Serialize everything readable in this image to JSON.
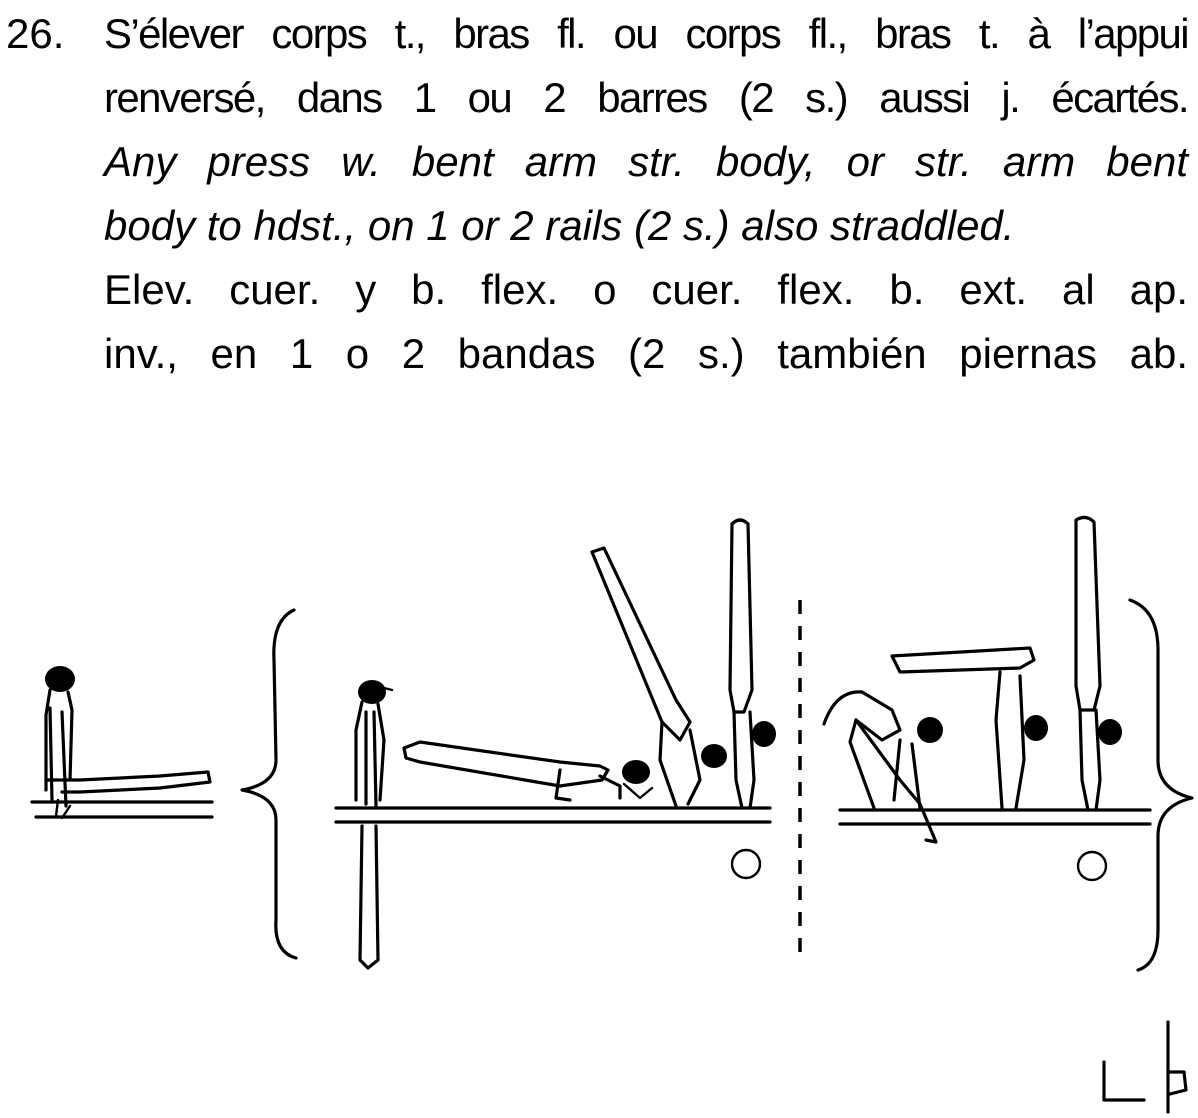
{
  "element": {
    "number": "26.",
    "french": {
      "line1": "S’élever corps t., bras fl. ou corps fl., bras t. à l’appui",
      "line2": "renversé, dans 1 ou 2 barres (2 s.) aussi j. écartés."
    },
    "english": {
      "line1": "Any press w. bent arm str. body, or str. arm bent",
      "line2": "body to hdst., on 1 or 2 rails (2 s.) also straddled."
    },
    "spanish": {
      "line1": "Elev. cuer. y b. flex. o cuer. flex. b. ext. al ap.",
      "line2": "inv., en 1 o 2 bandas (2 s.) también piernas ab."
    }
  },
  "figure": {
    "illustration": "parallel-bars-press-to-handstand-sequence",
    "symbol": "press-to-handstand-symbol"
  },
  "colors": {
    "ink": "#000000",
    "paper": "#ffffff"
  }
}
